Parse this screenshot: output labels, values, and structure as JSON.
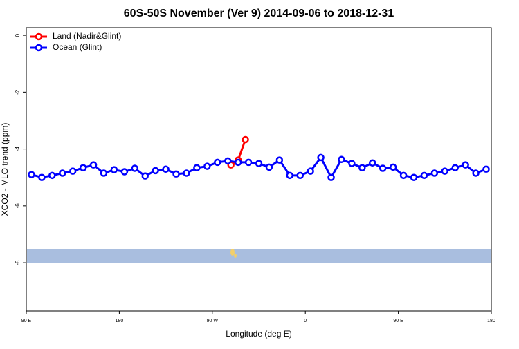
{
  "chart_data": {
    "type": "line",
    "title": "60S-50S November (Ver 9)   2014-09-06 to 2018-12-31",
    "x_label": "Longitude (deg E)",
    "y_label": "XCO2 - MLO trend (ppm)",
    "xlim": [
      90,
      540
    ],
    "xticks": [
      {
        "value": 90,
        "label": "90 E"
      },
      {
        "value": 180,
        "label": "180"
      },
      {
        "value": 270,
        "label": "90 W"
      },
      {
        "value": 360,
        "label": "0"
      },
      {
        "value": 450,
        "label": "90 E"
      },
      {
        "value": 540,
        "label": "180"
      }
    ],
    "ylim": [
      -9.7,
      0.27
    ],
    "yticks": [
      0,
      -2,
      -4,
      -6,
      -8
    ],
    "legend": "top-left",
    "series": [
      {
        "name": "Land (Nadir&Glint)",
        "color": "#ff0000",
        "x": [
          288,
          295,
          302
        ],
        "values": [
          -4.56,
          -4.39,
          -3.67
        ]
      },
      {
        "name": "Ocean (Glint)",
        "color": "#0000ff",
        "x": [
          95,
          105,
          115,
          125,
          135,
          145,
          155,
          165,
          175,
          185,
          195,
          205,
          215,
          225,
          235,
          245,
          255,
          265,
          275,
          285,
          295,
          305,
          315,
          325,
          335,
          345,
          355,
          365,
          375,
          385,
          395,
          405,
          415,
          425,
          435,
          445,
          455,
          465,
          475,
          485,
          495,
          505,
          515,
          525,
          535
        ],
        "values": [
          -4.9,
          -5.0,
          -4.93,
          -4.85,
          -4.78,
          -4.66,
          -4.56,
          -4.85,
          -4.73,
          -4.8,
          -4.68,
          -4.95,
          -4.76,
          -4.71,
          -4.88,
          -4.85,
          -4.66,
          -4.61,
          -4.47,
          -4.42,
          -4.47,
          -4.47,
          -4.51,
          -4.64,
          -4.39,
          -4.93,
          -4.93,
          -4.78,
          -4.3,
          -5.0,
          -4.37,
          -4.51,
          -4.66,
          -4.49,
          -4.68,
          -4.64,
          -4.93,
          -5.0,
          -4.93,
          -4.85,
          -4.78,
          -4.66,
          -4.56,
          -4.85,
          -4.71
        ]
      }
    ]
  }
}
